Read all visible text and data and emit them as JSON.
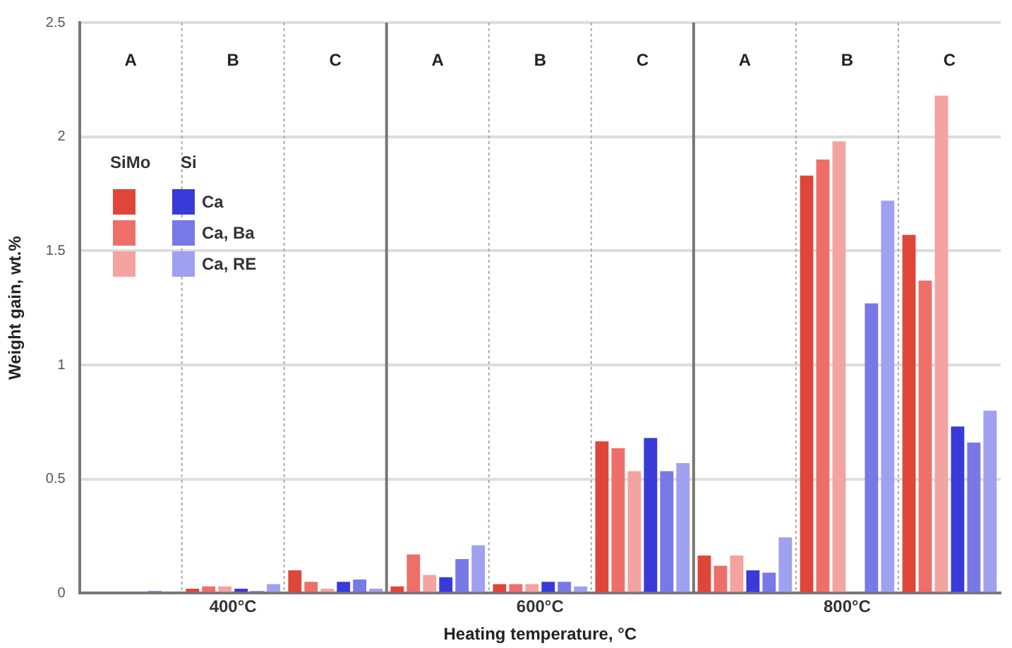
{
  "chart_data": {
    "type": "bar",
    "xlabel": "Heating temperature, °C",
    "ylabel": "Weight gain, wt.%",
    "categories": [
      null,
      "400°C",
      null,
      null,
      "600°C",
      null,
      null,
      "800°C",
      null
    ],
    "series": [
      {
        "color": "#e0453a",
        "values": [
          0,
          0.02,
          0.1,
          0.03,
          0.04,
          0.665,
          0.165,
          1.83,
          1.57
        ]
      },
      {
        "color": "#ee6f6a",
        "values": [
          0,
          0.03,
          0.05,
          0.17,
          0.04,
          0.635,
          0.12,
          1.9,
          1.37
        ]
      },
      {
        "color": "#f4a3a0",
        "values": [
          0,
          0.03,
          0.02,
          0.08,
          0.04,
          0.535,
          0.165,
          1.98,
          2.18
        ]
      },
      {
        "name": "Ca",
        "color": "#3a3ad8",
        "values": [
          0,
          0.02,
          0.05,
          0.07,
          0.05,
          0.68,
          0.1,
          null,
          0.73
        ]
      },
      {
        "name": "Ca, Ba",
        "color": "#7878e6",
        "values": [
          0.01,
          0.01,
          0.06,
          0.15,
          0.05,
          0.535,
          0.09,
          1.27,
          0.66
        ]
      },
      {
        "name": "Ca, RE",
        "color": "#a0a0f0",
        "values": [
          0,
          0.04,
          0.02,
          0.21,
          0.03,
          0.57,
          0.245,
          1.72,
          0.8
        ]
      }
    ],
    "ylim": [
      0,
      2.5
    ],
    "yticks": [
      0,
      0.5,
      1,
      1.5,
      2,
      2.5
    ],
    "grid": "y",
    "legend": "top left",
    "annotations": [
      "A",
      "B",
      "C",
      "A",
      "B",
      "C",
      "A",
      "B",
      "C",
      "SiMo",
      "Si"
    ]
  }
}
